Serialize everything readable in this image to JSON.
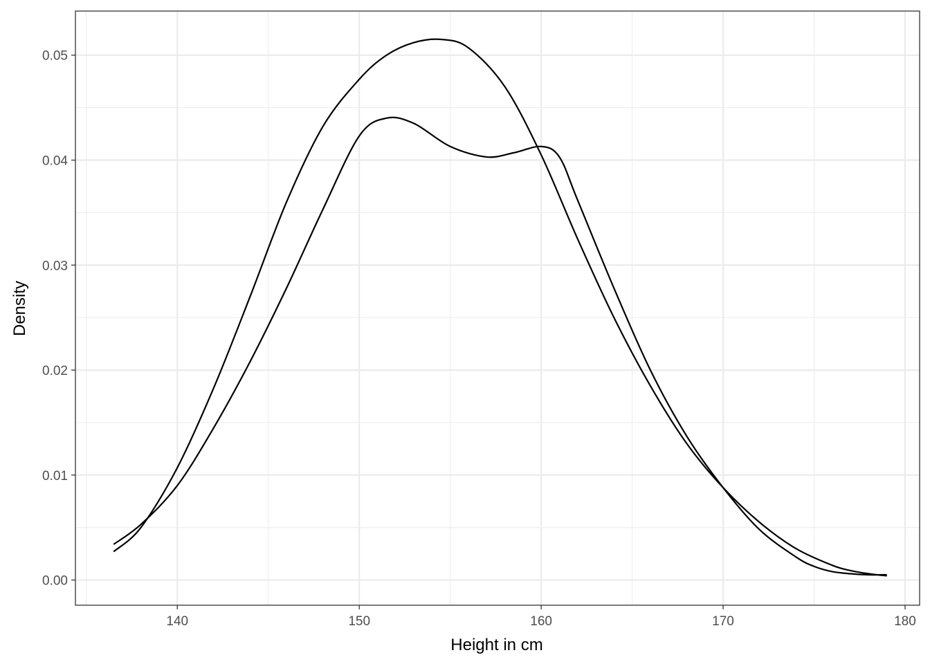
{
  "chart_data": {
    "type": "line",
    "title": "",
    "xlabel": "Height in cm",
    "ylabel": "Density",
    "xlim": [
      134.4,
      180.8
    ],
    "ylim": [
      -0.0024,
      0.0542
    ],
    "x_ticks": [
      140,
      150,
      160,
      170,
      180
    ],
    "y_ticks": [
      0.0,
      0.01,
      0.02,
      0.03,
      0.04,
      0.05
    ],
    "x_tick_labels": [
      "140",
      "150",
      "160",
      "170",
      "180"
    ],
    "y_tick_labels": [
      "0.00",
      "0.01",
      "0.02",
      "0.03",
      "0.04",
      "0.05"
    ],
    "grid": true,
    "legend": "none",
    "line_color": "#000000",
    "series": [
      {
        "x": [
          136.5,
          138,
          140,
          142,
          144,
          146,
          148,
          150,
          151.5,
          153,
          155,
          157,
          158.5,
          160,
          161,
          162,
          164,
          166,
          168,
          170,
          172,
          174,
          175,
          176,
          177,
          178,
          179
        ],
        "values": [
          0.0034,
          0.0053,
          0.009,
          0.0145,
          0.0208,
          0.0278,
          0.0353,
          0.0423,
          0.044,
          0.0435,
          0.0413,
          0.0403,
          0.0407,
          0.0413,
          0.0403,
          0.0362,
          0.0278,
          0.02,
          0.0137,
          0.0088,
          0.0048,
          0.0022,
          0.0013,
          0.0008,
          0.0006,
          0.0005,
          0.0005
        ]
      },
      {
        "x": [
          136.5,
          138,
          140,
          142,
          144,
          146,
          148,
          150,
          151.5,
          153,
          154.5,
          156,
          158,
          160,
          162,
          164,
          166,
          168,
          170,
          172,
          174,
          176,
          177,
          178,
          179
        ],
        "values": [
          0.0027,
          0.005,
          0.0107,
          0.0183,
          0.027,
          0.036,
          0.0432,
          0.0477,
          0.05,
          0.0512,
          0.0515,
          0.0507,
          0.047,
          0.0405,
          0.0325,
          0.025,
          0.0185,
          0.013,
          0.0088,
          0.0055,
          0.003,
          0.0014,
          0.0009,
          0.0006,
          0.0004
        ]
      }
    ]
  }
}
